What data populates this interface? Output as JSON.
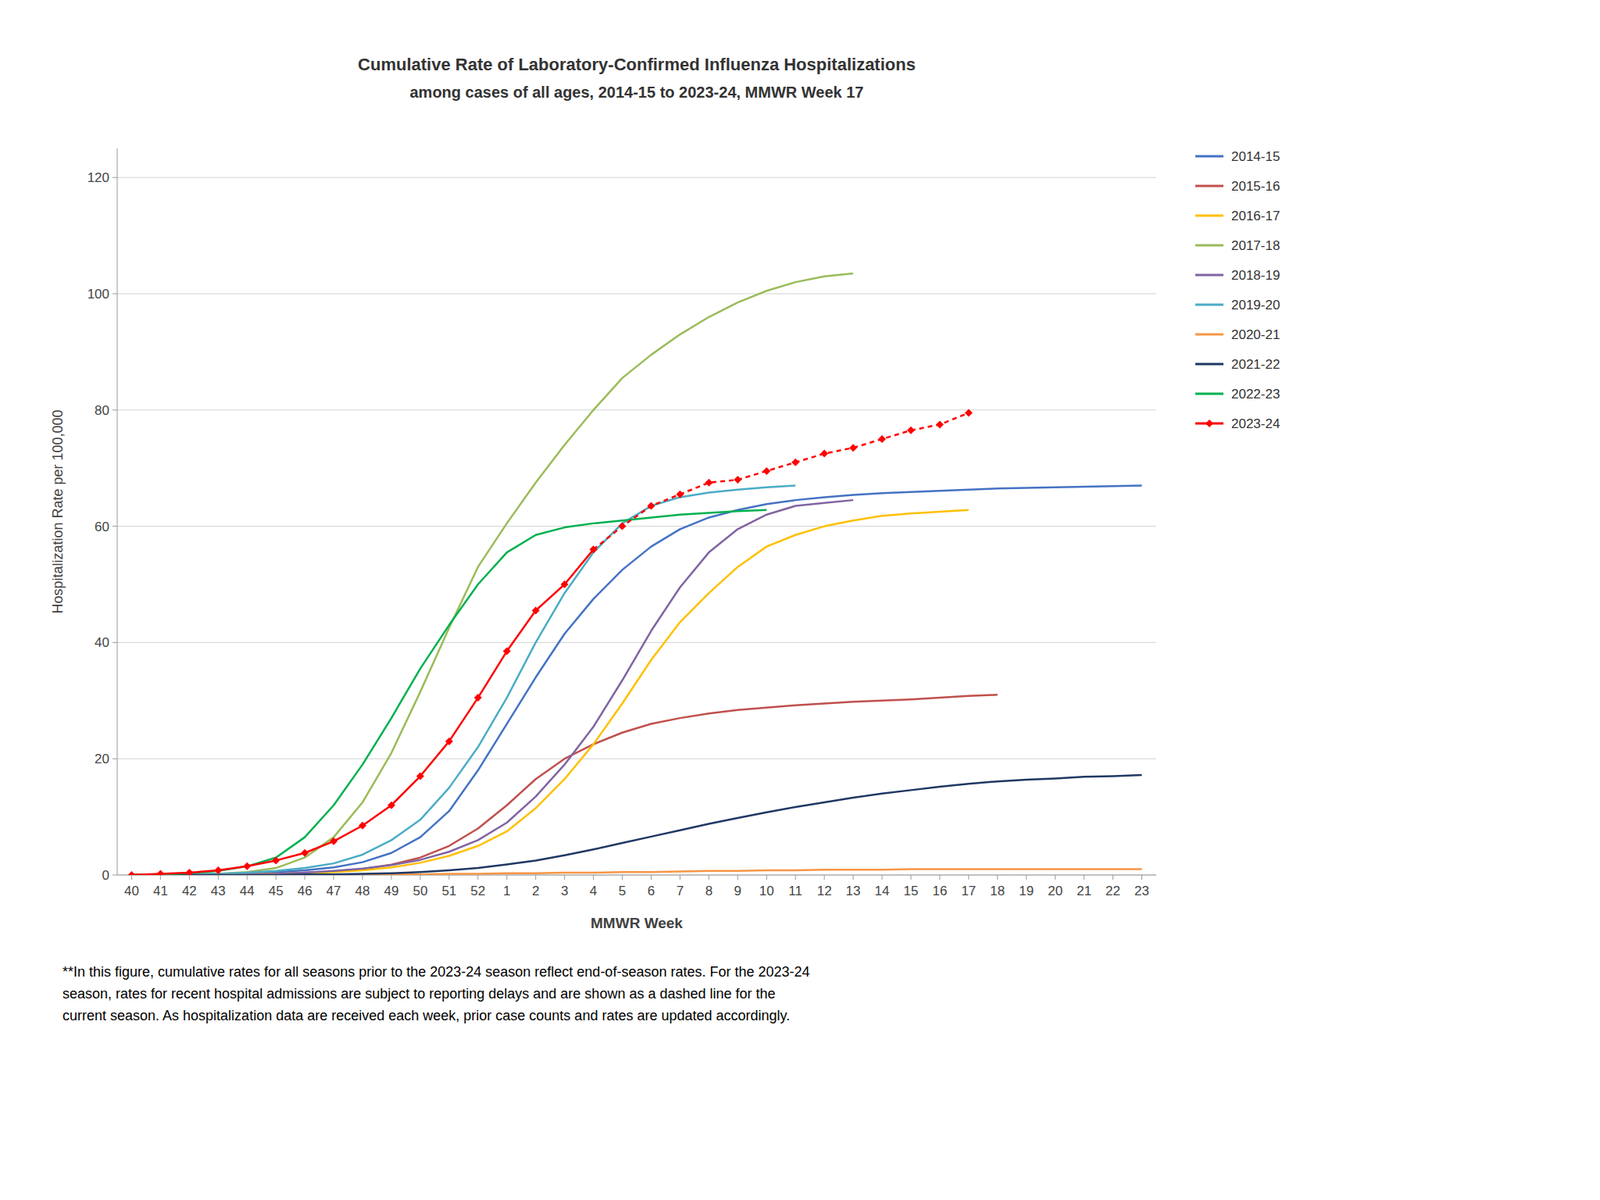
{
  "chart_data": {
    "type": "line",
    "title": "Cumulative Rate of Laboratory-Confirmed Influenza Hospitalizations",
    "subtitle": "among cases of all ages, 2014-15 to 2023-24, MMWR Week 17",
    "x_label": "MMWR Week",
    "y_label": "Hospitalization Rate per 100,000",
    "annotations": [
      "**In this figure, cumulative rates for all seasons prior to the 2023-24 season reflect end-of-season rates. For the 2023-24\nseason, rates for recent hospital admissions are subject to reporting delays and are shown as a dashed line for the\ncurrent season. As hospitalization data are received each week, prior case counts and rates are updated accordingly."
    ],
    "categories": [
      "40",
      "41",
      "42",
      "43",
      "44",
      "45",
      "46",
      "47",
      "48",
      "49",
      "50",
      "51",
      "52",
      "1",
      "2",
      "3",
      "4",
      "5",
      "6",
      "7",
      "8",
      "9",
      "10",
      "11",
      "12",
      "13",
      "14",
      "15",
      "16",
      "17",
      "18",
      "19",
      "20",
      "21",
      "22",
      "23"
    ],
    "ylim": [
      0,
      125
    ],
    "yticks": [
      0,
      20,
      40,
      60,
      80,
      100,
      120
    ],
    "grid": true,
    "legend": "right",
    "series": [
      {
        "name": "2014-15",
        "color": "#4472C4",
        "values": [
          0.0,
          0.0,
          0.1,
          0.2,
          0.3,
          0.5,
          0.8,
          1.3,
          2.2,
          3.8,
          6.5,
          11.0,
          18.0,
          26.0,
          34.0,
          41.5,
          47.5,
          52.5,
          56.5,
          59.5,
          61.5,
          62.8,
          63.8,
          64.5,
          65.0,
          65.4,
          65.7,
          65.9,
          66.1,
          66.3,
          66.5,
          66.6,
          66.7,
          66.8,
          66.9,
          67.0
        ]
      },
      {
        "name": "2015-16",
        "color": "#C0504D",
        "values": [
          0.0,
          0.0,
          0.0,
          0.1,
          0.1,
          0.2,
          0.4,
          0.6,
          1.0,
          1.8,
          3.0,
          5.0,
          8.0,
          12.0,
          16.5,
          20.0,
          22.5,
          24.5,
          26.0,
          27.0,
          27.8,
          28.4,
          28.8,
          29.2,
          29.5,
          29.8,
          30.0,
          30.2,
          30.5,
          30.8,
          31.0,
          null,
          null,
          null,
          null,
          null
        ]
      },
      {
        "name": "2016-17",
        "color": "#FFC000",
        "values": [
          0.0,
          0.0,
          0.0,
          0.0,
          0.1,
          0.2,
          0.3,
          0.5,
          0.8,
          1.3,
          2.1,
          3.3,
          5.0,
          7.5,
          11.5,
          16.5,
          22.5,
          29.5,
          37.0,
          43.5,
          48.5,
          53.0,
          56.5,
          58.5,
          60.0,
          61.0,
          61.8,
          62.2,
          62.5,
          62.8,
          null,
          null,
          null,
          null,
          null,
          null
        ]
      },
      {
        "name": "2017-18",
        "color": "#9BBB59",
        "values": [
          0.0,
          0.0,
          0.1,
          0.2,
          0.5,
          1.2,
          3.0,
          6.5,
          12.5,
          21.0,
          31.5,
          42.5,
          53.0,
          60.5,
          67.5,
          74.0,
          80.0,
          85.5,
          89.5,
          93.0,
          96.0,
          98.5,
          100.5,
          102.0,
          103.0,
          103.5,
          null,
          null,
          null,
          null,
          null,
          null,
          null,
          null,
          null,
          null
        ]
      },
      {
        "name": "2018-19",
        "color": "#8064A2",
        "values": [
          0.0,
          0.0,
          0.0,
          0.0,
          0.1,
          0.2,
          0.4,
          0.7,
          1.1,
          1.7,
          2.6,
          4.0,
          6.0,
          9.0,
          13.5,
          19.0,
          25.5,
          33.5,
          42.0,
          49.5,
          55.5,
          59.5,
          62.0,
          63.5,
          64.0,
          64.5,
          null,
          null,
          null,
          null,
          null,
          null,
          null,
          null,
          null,
          null
        ]
      },
      {
        "name": "2019-20",
        "color": "#4BACC6",
        "values": [
          0.0,
          0.0,
          0.1,
          0.2,
          0.4,
          0.7,
          1.2,
          2.0,
          3.5,
          6.0,
          9.5,
          15.0,
          22.0,
          30.5,
          40.0,
          48.5,
          55.5,
          60.5,
          63.5,
          65.0,
          65.8,
          66.3,
          66.7,
          67.0,
          null,
          null,
          null,
          null,
          null,
          null,
          null,
          null,
          null,
          null,
          null,
          null
        ]
      },
      {
        "name": "2020-21",
        "color": "#F79646",
        "values": [
          0.0,
          0.0,
          0.0,
          0.0,
          0.0,
          0.0,
          0.0,
          0.1,
          0.1,
          0.1,
          0.1,
          0.2,
          0.2,
          0.3,
          0.3,
          0.4,
          0.4,
          0.5,
          0.5,
          0.6,
          0.7,
          0.7,
          0.8,
          0.8,
          0.9,
          0.9,
          0.9,
          1.0,
          1.0,
          1.0,
          1.0,
          1.0,
          1.0,
          1.0,
          1.0,
          1.0
        ]
      },
      {
        "name": "2021-22",
        "color": "#1F3864",
        "values": [
          0.0,
          0.0,
          0.0,
          0.0,
          0.0,
          0.0,
          0.1,
          0.1,
          0.2,
          0.3,
          0.5,
          0.8,
          1.2,
          1.8,
          2.5,
          3.4,
          4.4,
          5.5,
          6.6,
          7.7,
          8.8,
          9.8,
          10.8,
          11.7,
          12.5,
          13.3,
          14.0,
          14.6,
          15.2,
          15.7,
          16.1,
          16.4,
          16.6,
          16.9,
          17.0,
          17.2
        ]
      },
      {
        "name": "2022-23",
        "color": "#00B050",
        "values": [
          0.0,
          0.1,
          0.3,
          0.7,
          1.5,
          3.0,
          6.5,
          12.0,
          19.0,
          27.0,
          35.5,
          43.0,
          50.0,
          55.5,
          58.5,
          59.8,
          60.5,
          61.0,
          61.5,
          62.0,
          62.3,
          62.6,
          62.8,
          null,
          null,
          null,
          null,
          null,
          null,
          null,
          null,
          null,
          null,
          null,
          null,
          null
        ]
      },
      {
        "name": "2023-24",
        "color": "#FF0000",
        "marker": "diamond",
        "line_style": "dashed",
        "dashed_from": 16,
        "values": [
          0.0,
          0.2,
          0.4,
          0.8,
          1.5,
          2.5,
          3.8,
          5.8,
          8.5,
          12.0,
          17.0,
          23.0,
          30.5,
          38.5,
          45.5,
          50.0,
          56.0,
          60.0,
          63.5,
          65.5,
          67.5,
          68.0,
          69.5,
          71.0,
          72.5,
          73.5,
          75.0,
          76.5,
          77.5,
          79.5,
          null,
          null,
          null,
          null,
          null,
          null
        ]
      }
    ]
  }
}
